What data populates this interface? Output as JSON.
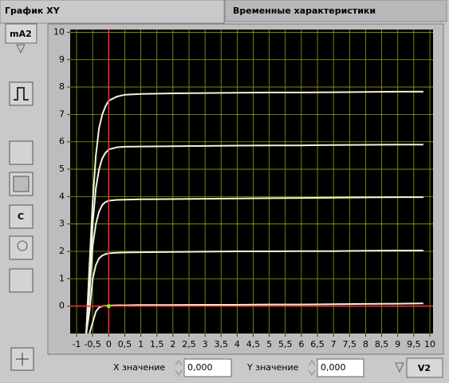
{
  "tabs": [
    "График XY",
    "Временные характеристики"
  ],
  "chart_data": {
    "type": "line",
    "ylabel": "mA2",
    "xlabel": "V2",
    "xlim": [
      -1.2,
      10.1
    ],
    "ylim": [
      -1,
      10.1
    ],
    "xticks": [
      -1,
      {
        "value": -0.5,
        "label": "-0,5"
      },
      0,
      {
        "value": 0.5,
        "label": "0,5"
      },
      1,
      {
        "value": 1.5,
        "label": "1,5"
      },
      2,
      {
        "value": 2.5,
        "label": "2,5"
      },
      3,
      {
        "value": 3.5,
        "label": "3,5"
      },
      4,
      {
        "value": 4.5,
        "label": "4,5"
      },
      5,
      {
        "value": 5.5,
        "label": "5,5"
      },
      6,
      {
        "value": 6.5,
        "label": "6,5"
      },
      7,
      {
        "value": 7.5,
        "label": "7,5"
      },
      8,
      {
        "value": 8.5,
        "label": "8,5"
      },
      9,
      {
        "value": 9.5,
        "label": "9,5"
      },
      10
    ],
    "yticks": [
      0,
      1,
      2,
      3,
      4,
      5,
      6,
      7,
      8,
      9,
      10
    ],
    "grid": true,
    "grid_color": "#9c9c00",
    "background": "#000000",
    "x": [
      -0.7,
      -0.6,
      -0.5,
      -0.4,
      -0.3,
      -0.2,
      -0.1,
      0,
      0.25,
      0.5,
      1,
      2,
      3,
      4,
      5,
      6,
      7,
      8,
      9,
      9.8
    ],
    "series": [
      {
        "color": "#f2f2dc",
        "values": [
          -1,
          1.5,
          3.8,
          5.5,
          6.5,
          7.0,
          7.3,
          7.5,
          7.65,
          7.72,
          7.75,
          7.77,
          7.78,
          7.79,
          7.8,
          7.8,
          7.81,
          7.82,
          7.83,
          7.83
        ]
      },
      {
        "color": "#f2f2dc",
        "values": [
          -1,
          1.0,
          3.0,
          4.3,
          5.0,
          5.4,
          5.6,
          5.72,
          5.8,
          5.82,
          5.83,
          5.84,
          5.85,
          5.86,
          5.87,
          5.87,
          5.88,
          5.89,
          5.9,
          5.9
        ]
      },
      {
        "color": "#f2f2dc",
        "values": [
          -1,
          0.5,
          2.2,
          3.0,
          3.45,
          3.7,
          3.8,
          3.85,
          3.88,
          3.89,
          3.9,
          3.91,
          3.92,
          3.93,
          3.94,
          3.95,
          3.96,
          3.97,
          3.98,
          3.98
        ]
      },
      {
        "color": "#f2f2dc",
        "values": [
          -1,
          -0.2,
          1.0,
          1.5,
          1.75,
          1.85,
          1.9,
          1.93,
          1.95,
          1.96,
          1.97,
          1.98,
          1.99,
          2.0,
          2.0,
          2.01,
          2.01,
          2.02,
          2.03,
          2.03
        ]
      },
      {
        "color": "#f2f2dc",
        "values": [
          null,
          -1,
          -0.6,
          -0.2,
          -0.05,
          0,
          0.01,
          0.02,
          0.03,
          0.03,
          0.04,
          0.04,
          0.05,
          0.05,
          0.06,
          0.06,
          0.07,
          0.08,
          0.09,
          0.1
        ]
      }
    ],
    "cursor": {
      "x": 0,
      "y": 0,
      "color": "#ff3030"
    }
  },
  "controls": {
    "reset_button": "C",
    "x_label": "X значение",
    "x_value": "0,000",
    "y_label": "Y значение",
    "y_value": "0,000"
  }
}
